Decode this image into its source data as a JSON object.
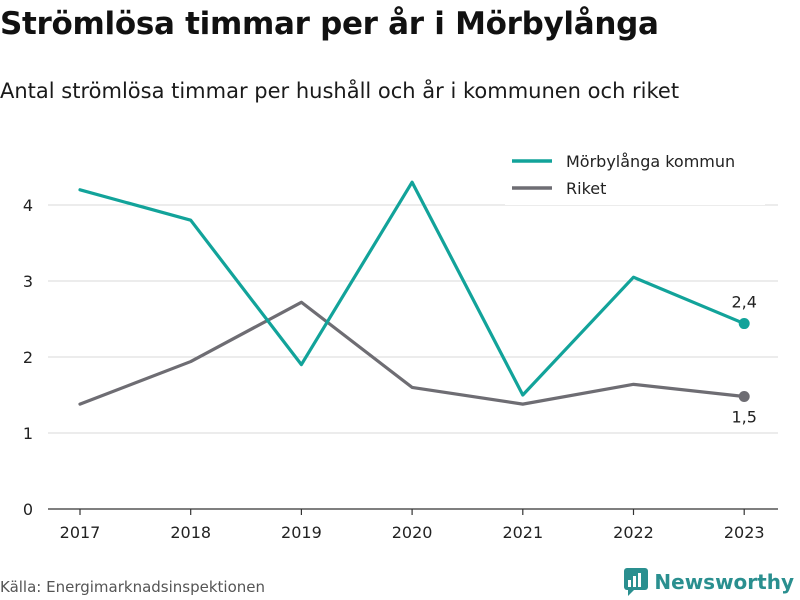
{
  "header": {
    "title": "Strömlösa timmar per år i Mörbylånga",
    "subtitle": "Antal strömlösa timmar per hushåll och år i kommunen och riket"
  },
  "chart_data": {
    "type": "line",
    "x": [
      "2017",
      "2018",
      "2019",
      "2020",
      "2021",
      "2022",
      "2023"
    ],
    "ylim": [
      0,
      4.6
    ],
    "yticks": [
      "0",
      "1",
      "2",
      "3",
      "4"
    ],
    "grid": true,
    "legend_position": "top-right",
    "series": [
      {
        "name": "Mörbylånga kommun",
        "color": "#12a39a",
        "values": [
          4.2,
          3.8,
          1.9,
          4.3,
          1.5,
          3.05,
          2.44
        ],
        "end_label": "2,4"
      },
      {
        "name": "Riket",
        "color": "#6e6d73",
        "values": [
          1.38,
          1.94,
          2.72,
          1.6,
          1.38,
          1.64,
          1.48
        ],
        "end_label": "1,5"
      }
    ]
  },
  "footer": {
    "source": "Källa: Energimarknadsinspektionen",
    "brand": "Newsworthy",
    "brand_icon": "newsworthy-logo-icon"
  }
}
